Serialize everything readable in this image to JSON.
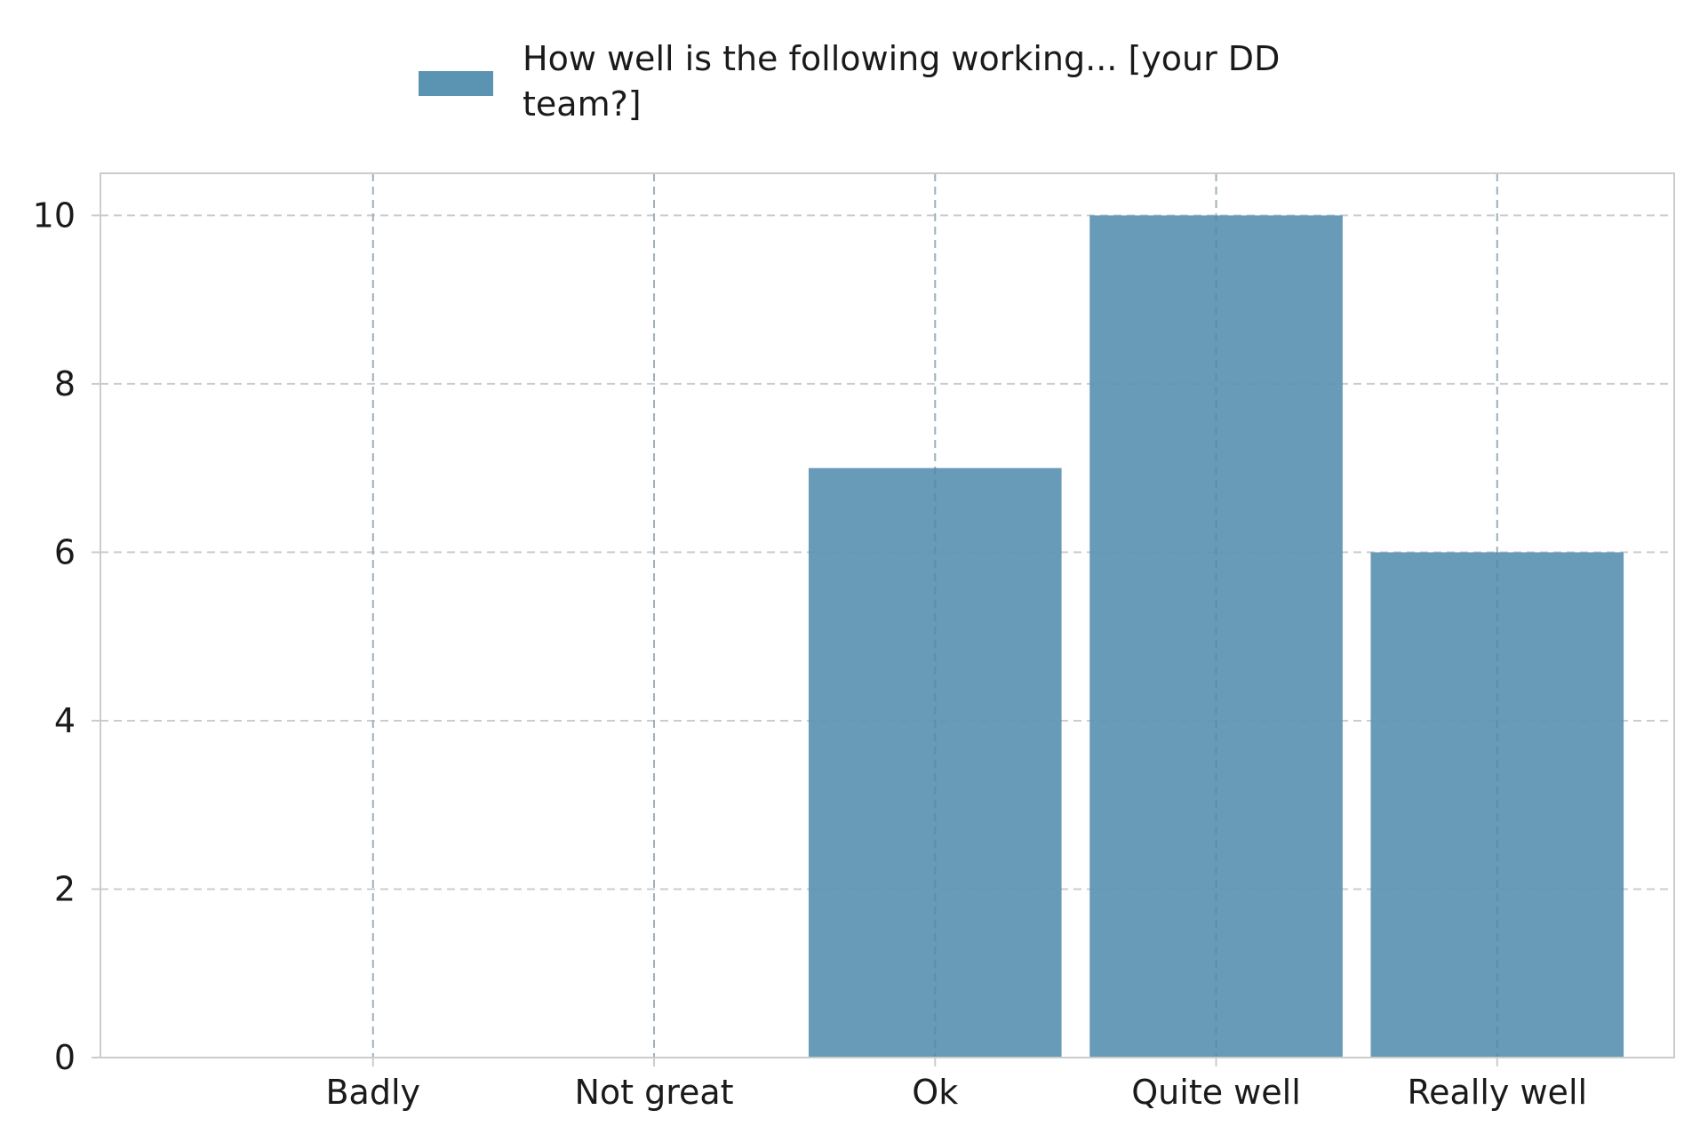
{
  "chart_data": {
    "type": "bar",
    "categories": [
      "Badly",
      "Not great",
      "Ok",
      "Quite well",
      "Really well"
    ],
    "series": [
      {
        "name": "How well is the following working... [your DD team?]",
        "values": [
          0,
          0,
          7,
          10,
          6
        ]
      }
    ],
    "legend": {
      "lines": [
        "How well is the following working... [your DD",
        "team?]"
      ],
      "position": "top-center"
    },
    "title": "",
    "xlabel": "",
    "ylabel": "",
    "ylim": [
      0,
      10.5
    ],
    "yticks": [
      0,
      2,
      4,
      6,
      8,
      10
    ],
    "grid": true,
    "colors": {
      "bar": "#5b93b3",
      "grid": "#cccccc",
      "frame": "#cccccc"
    }
  }
}
